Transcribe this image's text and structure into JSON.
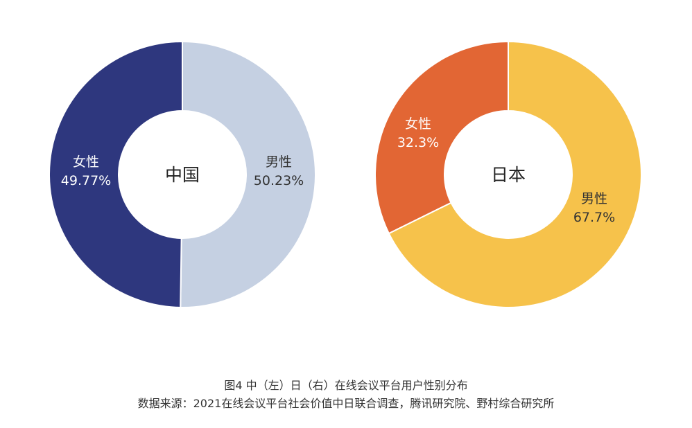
{
  "chart_data": [
    {
      "type": "pie",
      "center_label": "中国",
      "slices": [
        {
          "label": "男性",
          "value": 50.23,
          "value_text": "50.23%",
          "color": "#C5D0E2"
        },
        {
          "label": "女性",
          "value": 49.77,
          "value_text": "49.77%",
          "color": "#2E377E"
        }
      ]
    },
    {
      "type": "pie",
      "center_label": "日本",
      "slices": [
        {
          "label": "男性",
          "value": 67.7,
          "value_text": "67.7%",
          "color": "#F6C24B"
        },
        {
          "label": "女性",
          "value": 32.3,
          "value_text": "32.3%",
          "color": "#E26634"
        }
      ]
    }
  ],
  "caption": {
    "title": "图4  中（左）日（右）在线会议平台用户性别分布",
    "source": "数据来源：2021在线会议平台社会价值中日联合调查，腾讯研究院、野村综合研究所"
  }
}
